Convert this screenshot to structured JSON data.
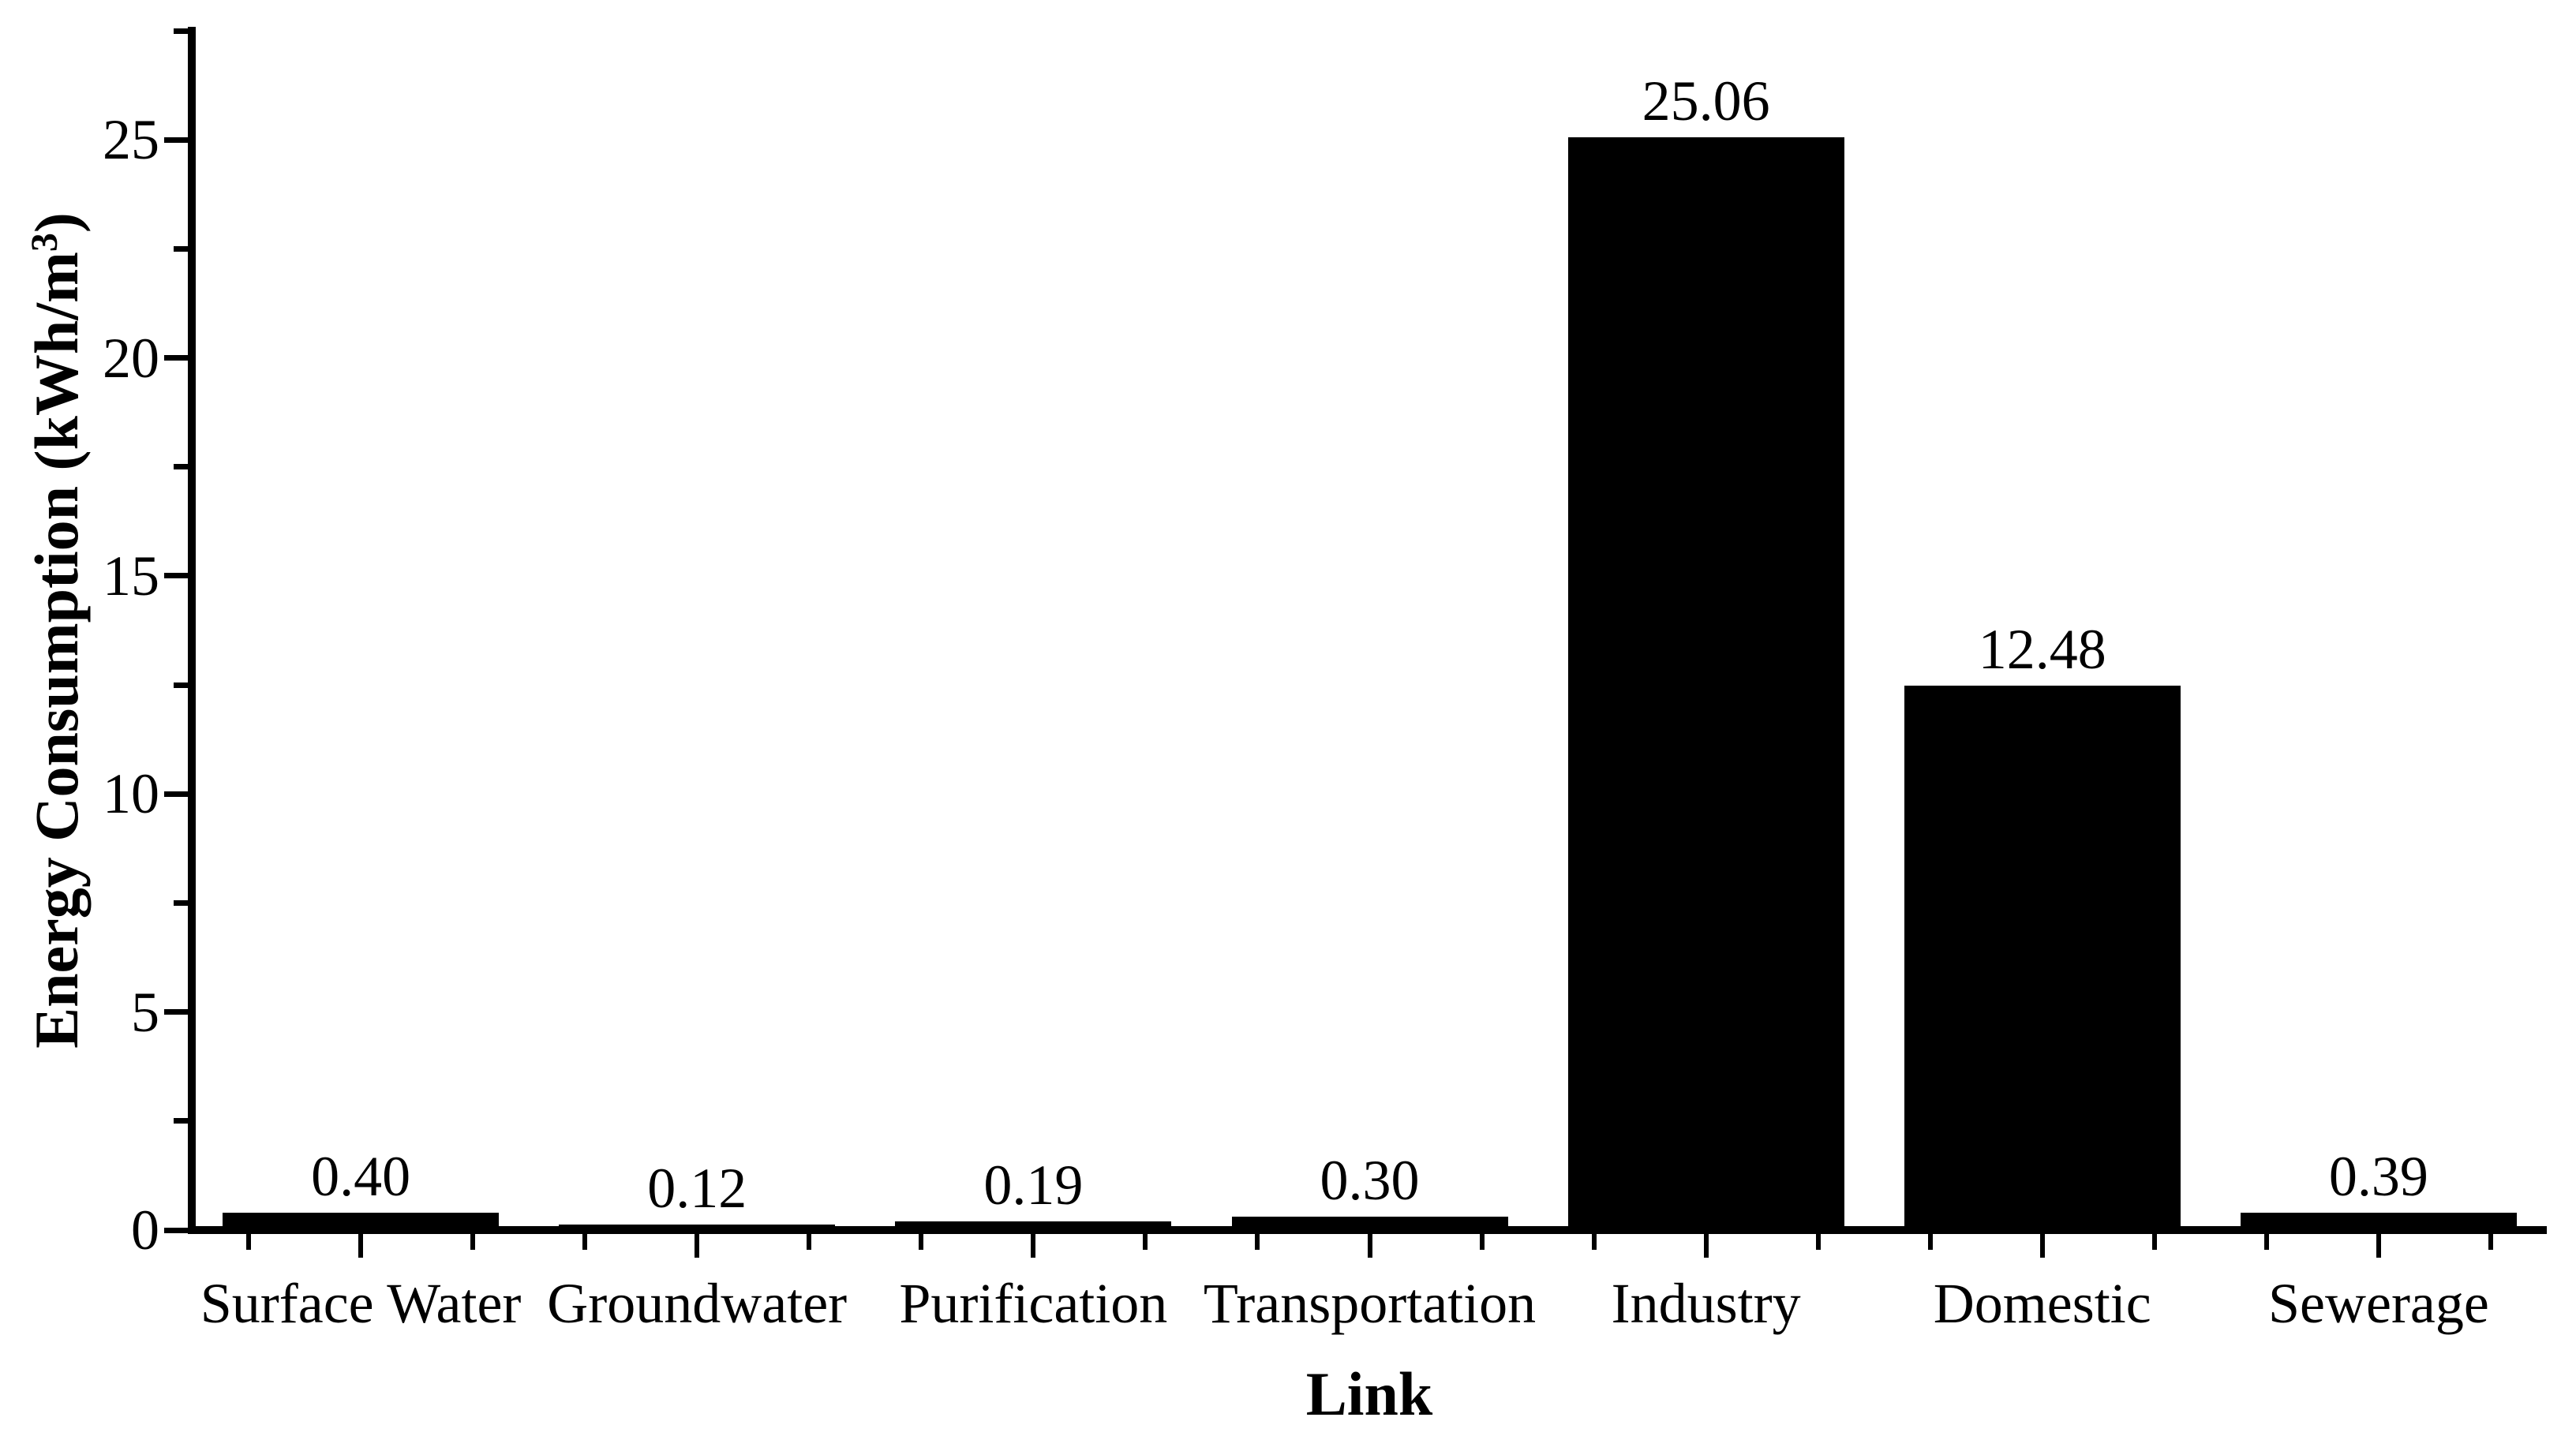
{
  "figure": {
    "background_color": "#ffffff",
    "ink_color": "#000000"
  },
  "chart_data": {
    "type": "bar",
    "title": "",
    "categories": [
      "Surface Water",
      "Groundwater",
      "Purification",
      "Transportation",
      "Industry",
      "Domestic",
      "Sewerage"
    ],
    "values": [
      0.4,
      0.12,
      0.19,
      0.3,
      25.06,
      12.48,
      0.39
    ],
    "bar_value_labels": [
      "0.40",
      "0.12",
      "0.19",
      "0.30",
      "25.06",
      "12.48",
      "0.39"
    ],
    "series_name": "Energy Consumption",
    "xlabel": "Link",
    "ylabel": "Energy Consumption (kWh/m³)",
    "ylabel_parts": {
      "prefix": "Energy Consumption (kWh/m",
      "superscript": "3",
      "suffix": ")"
    },
    "bar_color": "#000000",
    "ylim": [
      0,
      27.5
    ],
    "yticks": [
      0,
      5,
      10,
      15,
      20,
      25
    ],
    "ytick_labels": [
      "0",
      "5",
      "10",
      "15",
      "20",
      "25"
    ],
    "yminor_step": 2.5,
    "x_ticks_per_category": 3,
    "grid": false,
    "legend": "none",
    "bar_orientation": "vertical"
  }
}
